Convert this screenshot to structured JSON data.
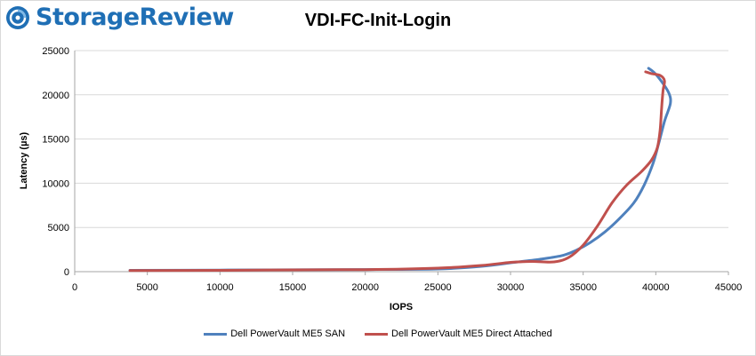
{
  "logo": {
    "text": "StorageReview",
    "icon": "storagereview-logo-icon",
    "color": "#1f6fb5"
  },
  "chart_data": {
    "type": "line",
    "title": "VDI-FC-Init-Login",
    "xlabel": "IOPS",
    "ylabel": "Latency (µs)",
    "xlim": [
      0,
      45000
    ],
    "ylim": [
      0,
      25000
    ],
    "xticks": [
      "0",
      "5000",
      "10000",
      "15000",
      "20000",
      "25000",
      "30000",
      "35000",
      "40000",
      "45000"
    ],
    "yticks": [
      "0",
      "5000",
      "10000",
      "15000",
      "20000",
      "25000"
    ],
    "grid": "horizontal",
    "legend_position": "bottom",
    "series": [
      {
        "name": "Dell PowerVault ME5 SAN",
        "color": "#4f81bd",
        "points": [
          [
            3800,
            150
          ],
          [
            10000,
            180
          ],
          [
            15000,
            210
          ],
          [
            20000,
            240
          ],
          [
            25000,
            300
          ],
          [
            28000,
            600
          ],
          [
            30000,
            1000
          ],
          [
            32000,
            1400
          ],
          [
            33500,
            1800
          ],
          [
            34500,
            2400
          ],
          [
            35500,
            3300
          ],
          [
            36500,
            4500
          ],
          [
            37500,
            6000
          ],
          [
            38500,
            7800
          ],
          [
            39200,
            9800
          ],
          [
            39800,
            12200
          ],
          [
            40200,
            14500
          ],
          [
            40600,
            17000
          ],
          [
            41000,
            19000
          ],
          [
            40900,
            20200
          ],
          [
            40400,
            21500
          ],
          [
            39900,
            22500
          ],
          [
            39500,
            23000
          ]
        ]
      },
      {
        "name": "Dell PowerVault ME5 Direct Attached",
        "color": "#c0504d",
        "points": [
          [
            3800,
            120
          ],
          [
            10000,
            150
          ],
          [
            15000,
            200
          ],
          [
            20000,
            230
          ],
          [
            25000,
            400
          ],
          [
            28000,
            700
          ],
          [
            30000,
            1050
          ],
          [
            31500,
            1150
          ],
          [
            33000,
            1100
          ],
          [
            34000,
            1600
          ],
          [
            35000,
            3000
          ],
          [
            36000,
            5200
          ],
          [
            37000,
            7800
          ],
          [
            38000,
            9800
          ],
          [
            39000,
            11300
          ],
          [
            39700,
            12600
          ],
          [
            40100,
            14000
          ],
          [
            40300,
            16000
          ],
          [
            40400,
            18500
          ],
          [
            40500,
            20500
          ],
          [
            40600,
            21600
          ],
          [
            40300,
            22200
          ],
          [
            39700,
            22400
          ],
          [
            39300,
            22600
          ]
        ]
      }
    ]
  }
}
